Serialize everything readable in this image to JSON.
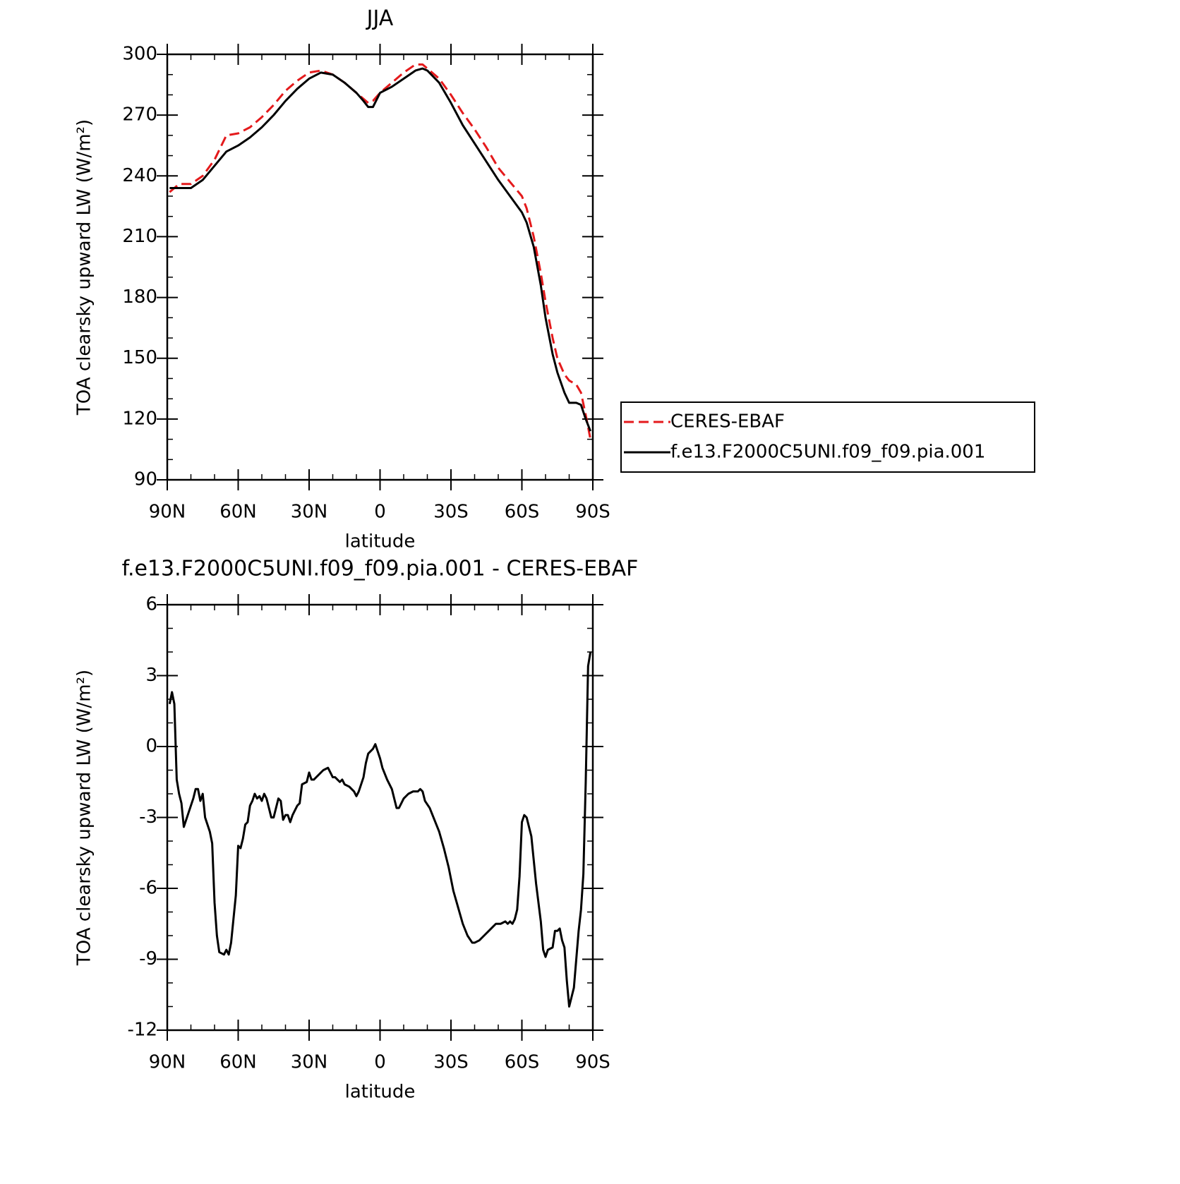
{
  "chart_data": [
    {
      "type": "line",
      "title": "JJA",
      "xlabel": "latitude",
      "ylabel": "TOA clearsky upward LW (W/m²)",
      "x": [
        89,
        85,
        80,
        75,
        70,
        65,
        60,
        55,
        50,
        45,
        40,
        35,
        30,
        25,
        20,
        15,
        10,
        7,
        5,
        3,
        0,
        -5,
        -10,
        -15,
        -18,
        -20,
        -25,
        -30,
        -35,
        -40,
        -45,
        -50,
        -55,
        -60,
        -62,
        -65,
        -68,
        -70,
        -73,
        -75,
        -78,
        -80,
        -83,
        -85,
        -87,
        -89
      ],
      "series": [
        {
          "name": "CERES-EBAF",
          "color": "#e41a1c",
          "dash": true,
          "values": [
            232,
            236,
            236,
            240,
            248,
            260,
            261,
            264,
            269,
            275,
            282,
            287,
            291,
            292,
            290,
            286,
            281,
            278,
            276,
            277,
            281,
            286,
            291,
            295,
            295,
            293,
            288,
            280,
            271,
            263,
            254,
            244,
            237,
            230,
            224,
            210,
            192,
            178,
            160,
            150,
            142,
            139,
            137,
            133,
            122,
            110
          ]
        },
        {
          "name": "f.e13.F2000C5UNI.f09_f09.pia.001",
          "color": "#000000",
          "dash": false,
          "values": [
            234,
            234,
            234,
            238,
            245,
            252,
            255,
            259,
            264,
            270,
            277,
            283,
            288,
            291,
            290,
            286,
            281,
            277,
            274,
            274,
            281,
            284,
            288,
            292,
            293,
            292,
            286,
            276,
            265,
            256,
            247,
            238,
            230,
            222,
            217,
            205,
            186,
            170,
            152,
            143,
            133,
            128,
            128,
            127,
            120,
            114
          ]
        }
      ],
      "xlim": [
        90,
        -90
      ],
      "xticks": [
        {
          "value": 90,
          "label": "90N"
        },
        {
          "value": 60,
          "label": "60N"
        },
        {
          "value": 30,
          "label": "30N"
        },
        0,
        {
          "value": -30,
          "label": "30S"
        },
        {
          "value": -60,
          "label": "60S"
        },
        {
          "value": -90,
          "label": "90S"
        }
      ],
      "ylim": [
        90,
        300
      ],
      "yticks": [
        90,
        120,
        150,
        180,
        210,
        240,
        270,
        300
      ],
      "legend": "right"
    },
    {
      "type": "line",
      "title": "f.e13.F2000C5UNI.f09_f09.pia.001 - CERES-EBAF",
      "xlabel": "latitude",
      "ylabel": "TOA clearsky upward LW (W/m²)",
      "x": [
        89,
        88,
        87,
        86,
        85,
        84,
        83,
        81,
        79,
        78,
        77,
        76,
        75,
        74,
        72,
        71,
        70,
        69,
        68,
        66,
        65,
        64,
        63,
        61,
        60,
        59,
        58,
        57,
        56,
        55,
        54,
        53,
        52,
        51,
        50,
        49,
        48,
        46,
        45,
        44,
        43,
        42,
        41,
        40,
        39,
        38,
        37,
        36,
        35,
        34,
        33,
        31,
        30,
        29,
        28,
        26,
        25,
        24,
        22,
        21,
        20,
        19,
        18,
        17,
        16,
        15,
        13,
        11,
        10,
        9,
        7,
        6,
        5,
        3,
        2,
        1,
        0,
        -1,
        -3,
        -5,
        -6,
        -7,
        -8,
        -9,
        -10,
        -12,
        -14,
        -16,
        -17,
        -18,
        -19,
        -21,
        -23,
        -25,
        -27,
        -29,
        -31,
        -33,
        -35,
        -37,
        -39,
        -40,
        -42,
        -44,
        -46,
        -48,
        -49,
        -51,
        -53,
        -54,
        -55,
        -56,
        -57,
        -58,
        -59,
        -60,
        -61,
        -62,
        -64,
        -66,
        -68,
        -69,
        -70,
        -71,
        -73,
        -74,
        -75,
        -76,
        -77,
        -78,
        -79,
        -80,
        -82,
        -83,
        -84,
        -85,
        -86,
        -87,
        -88,
        -89
      ],
      "series": [
        {
          "color": "#000000",
          "dash": false,
          "values": [
            1.8,
            2.3,
            1.8,
            -1.4,
            -2.0,
            -2.4,
            -3.4,
            -2.8,
            -2.2,
            -1.8,
            -1.8,
            -2.3,
            -2.0,
            -3.0,
            -3.6,
            -4.1,
            -6.6,
            -8.0,
            -8.7,
            -8.8,
            -8.6,
            -8.8,
            -8.3,
            -6.3,
            -4.2,
            -4.3,
            -3.9,
            -3.3,
            -3.2,
            -2.5,
            -2.3,
            -2.0,
            -2.2,
            -2.1,
            -2.3,
            -2.0,
            -2.2,
            -3.0,
            -3.0,
            -2.6,
            -2.2,
            -2.3,
            -3.1,
            -2.9,
            -2.9,
            -3.2,
            -2.9,
            -2.7,
            -2.5,
            -2.4,
            -1.6,
            -1.5,
            -1.1,
            -1.4,
            -1.4,
            -1.2,
            -1.1,
            -1.0,
            -0.9,
            -1.1,
            -1.3,
            -1.3,
            -1.4,
            -1.5,
            -1.4,
            -1.6,
            -1.7,
            -1.9,
            -2.1,
            -1.9,
            -1.3,
            -0.7,
            -0.3,
            -0.1,
            0.1,
            -0.2,
            -0.5,
            -0.9,
            -1.4,
            -1.8,
            -2.2,
            -2.6,
            -2.6,
            -2.4,
            -2.2,
            -2.0,
            -1.9,
            -1.9,
            -1.8,
            -1.9,
            -2.3,
            -2.6,
            -3.1,
            -3.6,
            -4.3,
            -5.1,
            -6.1,
            -6.8,
            -7.5,
            -8.0,
            -8.3,
            -8.3,
            -8.2,
            -8.0,
            -7.8,
            -7.6,
            -7.5,
            -7.5,
            -7.4,
            -7.5,
            -7.4,
            -7.5,
            -7.3,
            -6.9,
            -5.5,
            -3.2,
            -2.9,
            -3.0,
            -3.8,
            -5.8,
            -7.4,
            -8.6,
            -8.9,
            -8.6,
            -8.5,
            -7.8,
            -7.8,
            -7.7,
            -8.2,
            -8.5,
            -9.9,
            -11.0,
            -10.2,
            -9.0,
            -7.8,
            -6.9,
            -5.4,
            -1.5,
            3.4,
            4.0
          ]
        }
      ],
      "xlim": [
        90,
        -90
      ],
      "xticks": [
        {
          "value": 90,
          "label": "90N"
        },
        {
          "value": 60,
          "label": "60N"
        },
        {
          "value": 30,
          "label": "30N"
        },
        0,
        {
          "value": -30,
          "label": "30S"
        },
        {
          "value": -60,
          "label": "60S"
        },
        {
          "value": -90,
          "label": "90S"
        }
      ],
      "ylim": [
        -12,
        6
      ],
      "yticks": [
        -12,
        -9,
        -6,
        -3,
        0,
        3,
        6
      ]
    }
  ]
}
